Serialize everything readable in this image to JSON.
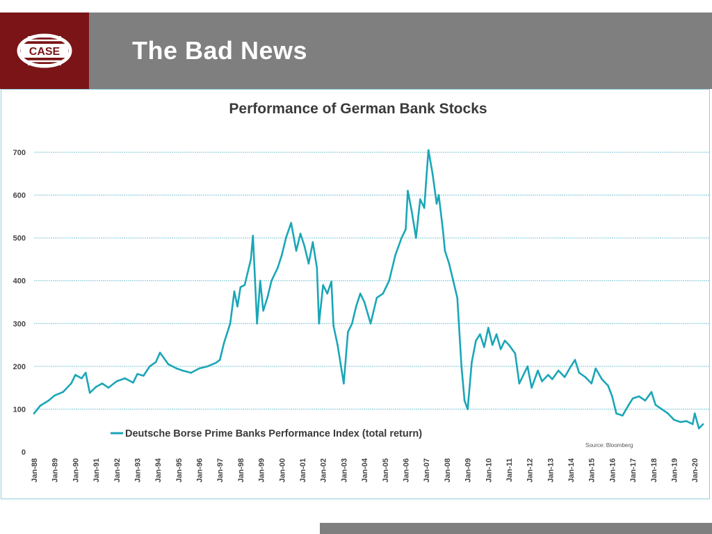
{
  "header": {
    "logo_text": "CASE",
    "slide_title": "The Bad News"
  },
  "colors": {
    "header_gray": "#7f7f7f",
    "logo_red": "#7a1416",
    "series_color": "#1aa6b7",
    "grid_color": "#7fc6d6"
  },
  "chart_data": {
    "type": "line",
    "title": "Performance of German Bank Stocks",
    "source": "Source: Bloomberg",
    "xlabel": "",
    "ylabel": "",
    "ylim": [
      0,
      700
    ],
    "yticks": [
      0,
      100,
      200,
      300,
      400,
      500,
      600,
      700
    ],
    "ytick_labels": [
      "0",
      "100",
      "200",
      "300",
      "400",
      "500",
      "600",
      "700"
    ],
    "xlim": [
      1988.0,
      2020.7
    ],
    "xticks": [
      1988,
      1989,
      1990,
      1991,
      1992,
      1993,
      1994,
      1995,
      1996,
      1997,
      1998,
      1999,
      2000,
      2001,
      2002,
      2003,
      2004,
      2005,
      2006,
      2007,
      2008,
      2009,
      2010,
      2011,
      2012,
      2013,
      2014,
      2015,
      2016,
      2017,
      2018,
      2019,
      2020
    ],
    "xtick_labels": [
      "Jan-88",
      "Jan-89",
      "Jan-90",
      "Jan-91",
      "Jan-92",
      "Jan-93",
      "Jan-94",
      "Jan-95",
      "Jan-96",
      "Jan-97",
      "Jan-98",
      "Jan-99",
      "Jan-00",
      "Jan-01",
      "Jan-02",
      "Jan-03",
      "Jan-04",
      "Jan-05",
      "Jan-06",
      "Jan-07",
      "Jan-08",
      "Jan-09",
      "Jan-10",
      "Jan-11",
      "Jan-12",
      "Jan-13",
      "Jan-14",
      "Jan-15",
      "Jan-16",
      "Jan-17",
      "Jan-18",
      "Jan-19",
      "Jan-20"
    ],
    "legend": "bottom-left",
    "grid": true,
    "series": [
      {
        "name": "Deutsche Borse Prime Banks Performance Index (total return)",
        "x": [
          1988.0,
          1988.3,
          1988.7,
          1989.0,
          1989.4,
          1989.8,
          1990.0,
          1990.3,
          1990.5,
          1990.7,
          1991.0,
          1991.3,
          1991.6,
          1992.0,
          1992.4,
          1992.8,
          1993.0,
          1993.3,
          1993.6,
          1993.9,
          1994.1,
          1994.5,
          1994.9,
          1995.2,
          1995.6,
          1996.0,
          1996.4,
          1996.8,
          1997.0,
          1997.2,
          1997.5,
          1997.7,
          1997.85,
          1998.0,
          1998.2,
          1998.5,
          1998.6,
          1998.8,
          1998.95,
          1999.1,
          1999.3,
          1999.5,
          1999.8,
          2000.0,
          2000.2,
          2000.45,
          2000.7,
          2000.9,
          2001.1,
          2001.3,
          2001.5,
          2001.7,
          2001.8,
          2002.0,
          2002.2,
          2002.4,
          2002.5,
          2002.7,
          2002.9,
          2003.0,
          2003.2,
          2003.4,
          2003.6,
          2003.8,
          2004.0,
          2004.3,
          2004.6,
          2004.9,
          2005.2,
          2005.5,
          2005.8,
          2006.0,
          2006.1,
          2006.3,
          2006.5,
          2006.7,
          2006.9,
          2007.0,
          2007.1,
          2007.3,
          2007.5,
          2007.6,
          2007.8,
          2007.9,
          2008.1,
          2008.3,
          2008.5,
          2008.7,
          2008.85,
          2009.0,
          2009.2,
          2009.4,
          2009.6,
          2009.8,
          2010.0,
          2010.2,
          2010.4,
          2010.6,
          2010.8,
          2011.0,
          2011.3,
          2011.5,
          2011.7,
          2011.9,
          2012.1,
          2012.4,
          2012.6,
          2012.9,
          2013.1,
          2013.4,
          2013.7,
          2014.0,
          2014.2,
          2014.4,
          2014.7,
          2015.0,
          2015.2,
          2015.5,
          2015.8,
          2016.0,
          2016.2,
          2016.5,
          2016.8,
          2017.0,
          2017.3,
          2017.6,
          2017.9,
          2018.1,
          2018.4,
          2018.7,
          2019.0,
          2019.3,
          2019.6,
          2019.9,
          2020.0,
          2020.2,
          2020.4
        ],
        "values": [
          90,
          108,
          120,
          132,
          140,
          160,
          180,
          172,
          185,
          138,
          152,
          160,
          150,
          165,
          172,
          162,
          182,
          178,
          200,
          210,
          232,
          205,
          195,
          190,
          185,
          195,
          200,
          208,
          215,
          255,
          300,
          375,
          340,
          385,
          390,
          450,
          505,
          300,
          400,
          330,
          360,
          400,
          430,
          460,
          500,
          535,
          470,
          510,
          480,
          440,
          490,
          430,
          300,
          390,
          370,
          398,
          295,
          250,
          190,
          160,
          280,
          300,
          340,
          370,
          350,
          300,
          360,
          370,
          400,
          460,
          500,
          520,
          610,
          560,
          500,
          590,
          570,
          640,
          705,
          650,
          580,
          600,
          520,
          470,
          440,
          400,
          360,
          200,
          120,
          100,
          210,
          260,
          275,
          245,
          290,
          250,
          275,
          240,
          260,
          250,
          230,
          160,
          180,
          200,
          150,
          190,
          165,
          180,
          170,
          190,
          175,
          200,
          215,
          185,
          175,
          160,
          195,
          170,
          155,
          130,
          90,
          85,
          110,
          125,
          130,
          120,
          140,
          110,
          100,
          90,
          75,
          70,
          72,
          65,
          90,
          55,
          65
        ]
      }
    ]
  }
}
